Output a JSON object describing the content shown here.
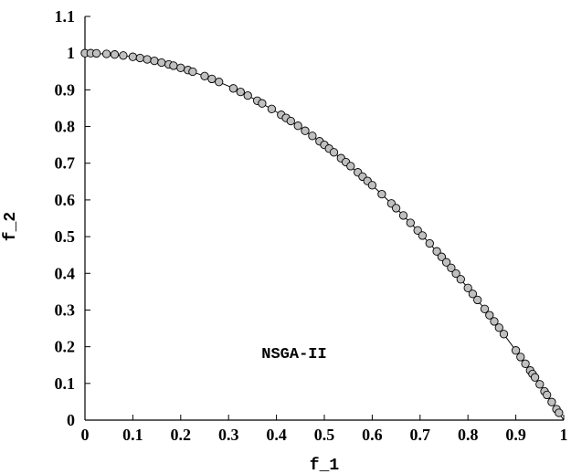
{
  "chart_data": {
    "type": "scatter",
    "title": "",
    "xlabel": "f_1",
    "ylabel": "f_2",
    "xlim": [
      0,
      1
    ],
    "ylim": [
      0,
      1.1
    ],
    "xticks": [
      "0",
      "0.1",
      "0.2",
      "0.3",
      "0.4",
      "0.5",
      "0.6",
      "0.7",
      "0.8",
      "0.9",
      "1"
    ],
    "yticks": [
      "0",
      "0.1",
      "0.2",
      "0.3",
      "0.4",
      "0.5",
      "0.6",
      "0.7",
      "0.8",
      "0.9",
      "1",
      "1.1"
    ],
    "grid": false,
    "annotation": "NSGA-II",
    "colors": {
      "marker_fill": "#c0c0c0",
      "marker_edge": "#000000",
      "line": "#000000"
    },
    "series": [
      {
        "type": "line",
        "function": "f_2 = 1 - f_1^2",
        "x": [
          0,
          0.05,
          0.1,
          0.15,
          0.2,
          0.25,
          0.3,
          0.35,
          0.4,
          0.45,
          0.5,
          0.55,
          0.6,
          0.65,
          0.7,
          0.75,
          0.8,
          0.85,
          0.9,
          0.95,
          1.0
        ],
        "y": [
          1.0,
          0.9975,
          0.99,
          0.9775,
          0.96,
          0.9375,
          0.91,
          0.8775,
          0.84,
          0.7975,
          0.75,
          0.6975,
          0.64,
          0.5775,
          0.51,
          0.4375,
          0.36,
          0.2775,
          0.19,
          0.0975,
          0.0
        ]
      },
      {
        "type": "scatter",
        "x": [
          0.0,
          0.012,
          0.024,
          0.045,
          0.062,
          0.08,
          0.1,
          0.115,
          0.13,
          0.145,
          0.16,
          0.175,
          0.185,
          0.2,
          0.215,
          0.225,
          0.25,
          0.265,
          0.28,
          0.31,
          0.325,
          0.34,
          0.36,
          0.37,
          0.39,
          0.41,
          0.42,
          0.43,
          0.445,
          0.46,
          0.475,
          0.49,
          0.5,
          0.51,
          0.52,
          0.535,
          0.545,
          0.555,
          0.57,
          0.58,
          0.59,
          0.6,
          0.62,
          0.64,
          0.65,
          0.665,
          0.68,
          0.695,
          0.705,
          0.72,
          0.735,
          0.745,
          0.755,
          0.765,
          0.775,
          0.785,
          0.8,
          0.81,
          0.82,
          0.835,
          0.845,
          0.855,
          0.865,
          0.875,
          0.9,
          0.91,
          0.92,
          0.93,
          0.935,
          0.94,
          0.95,
          0.96,
          0.965,
          0.975,
          0.985,
          0.99
        ],
        "y": [
          1.0,
          0.9999,
          0.9994,
          0.998,
          0.9962,
          0.9936,
          0.99,
          0.9868,
          0.9831,
          0.979,
          0.9744,
          0.9694,
          0.9658,
          0.96,
          0.9538,
          0.9494,
          0.9375,
          0.9298,
          0.9216,
          0.9039,
          0.8944,
          0.8844,
          0.8704,
          0.8631,
          0.8479,
          0.8319,
          0.8236,
          0.8151,
          0.802,
          0.7884,
          0.7744,
          0.7599,
          0.75,
          0.7399,
          0.7296,
          0.7138,
          0.703,
          0.692,
          0.6751,
          0.6636,
          0.6519,
          0.64,
          0.6156,
          0.5904,
          0.5775,
          0.5578,
          0.5376,
          0.517,
          0.503,
          0.4816,
          0.4598,
          0.445,
          0.43,
          0.4148,
          0.3994,
          0.3838,
          0.36,
          0.3439,
          0.3276,
          0.3028,
          0.286,
          0.269,
          0.2518,
          0.2344,
          0.19,
          0.1719,
          0.1536,
          0.1351,
          0.1258,
          0.1164,
          0.0975,
          0.0784,
          0.0688,
          0.0494,
          0.0298,
          0.0199
        ]
      }
    ]
  }
}
